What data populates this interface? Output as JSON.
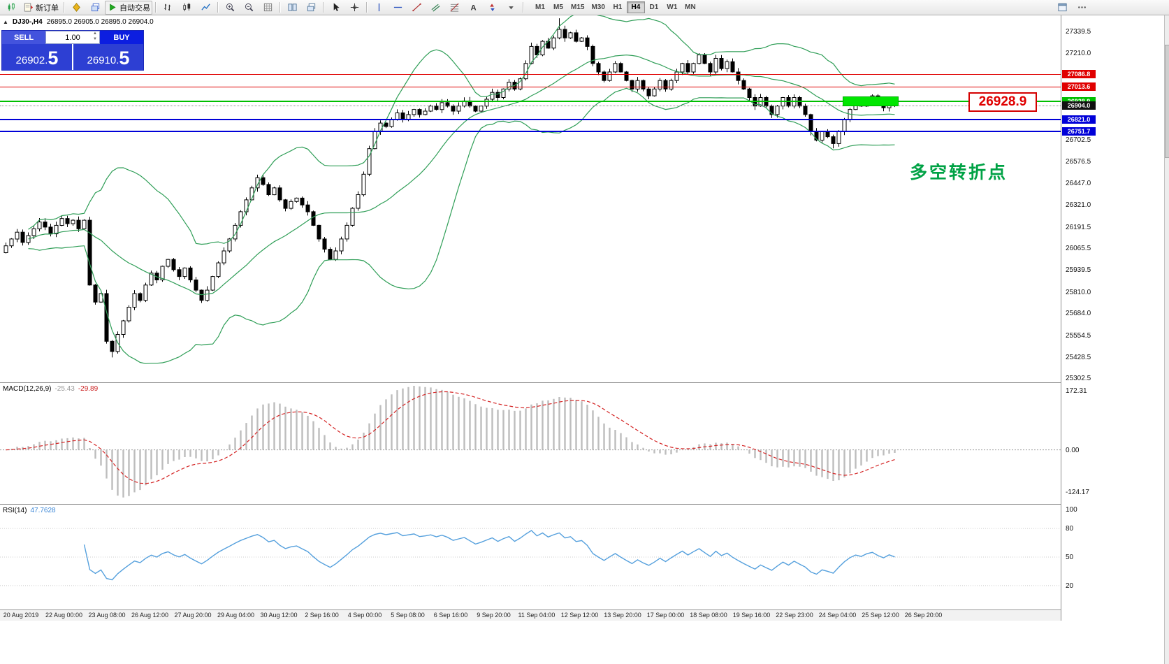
{
  "toolbar": {
    "items": [
      {
        "icon": "chart-new",
        "name": "new-chart"
      },
      {
        "icon": "order",
        "name": "new-order",
        "label": "新订单"
      },
      {
        "sep": true
      },
      {
        "icon": "diamond",
        "name": "symbols"
      },
      {
        "icon": "layers",
        "name": "chart-windows"
      },
      {
        "icon": "play",
        "name": "autotrade",
        "label": "自动交易",
        "boxed": true
      },
      {
        "sep": true
      },
      {
        "icon": "bars",
        "name": "bar-chart"
      },
      {
        "icon": "candles",
        "name": "candle-chart"
      },
      {
        "icon": "line",
        "name": "line-chart"
      },
      {
        "sep": true
      },
      {
        "icon": "zoom-in",
        "name": "zoom-in"
      },
      {
        "icon": "zoom-out",
        "name": "zoom-out"
      },
      {
        "icon": "grid",
        "name": "grid"
      },
      {
        "sep": true
      },
      {
        "icon": "tile",
        "name": "tile-windows"
      },
      {
        "icon": "cascade",
        "name": "cascade-windows"
      },
      {
        "sep": true
      },
      {
        "icon": "cursor",
        "name": "cursor"
      },
      {
        "icon": "crosshair",
        "name": "crosshair"
      },
      {
        "sep": true
      },
      {
        "icon": "vline",
        "name": "vertical-line"
      },
      {
        "icon": "hline",
        "name": "horizontal-line"
      },
      {
        "icon": "trendline",
        "name": "trendline"
      },
      {
        "icon": "channel",
        "name": "equidistant-channel"
      },
      {
        "icon": "fibo",
        "name": "fibonacci"
      },
      {
        "icon": "text",
        "name": "text-label"
      },
      {
        "icon": "arrows",
        "name": "arrow-objects"
      },
      {
        "icon": "caret",
        "name": "objects-list"
      },
      {
        "sep": true
      }
    ],
    "right_items": [
      {
        "icon": "window",
        "name": "new-window"
      },
      {
        "icon": "more",
        "name": "toolbar-more"
      }
    ],
    "timeframes": [
      "M1",
      "M5",
      "M15",
      "M30",
      "H1",
      "H4",
      "D1",
      "W1",
      "MN"
    ],
    "active_timeframe": "H4"
  },
  "chart_header": {
    "collapse_icon": "▲",
    "symbol_title": "DJ30-,H4",
    "ohlc_text": "26895.0 26905.0 26895.0 26904.0"
  },
  "one_click": {
    "sell_label": "SELL",
    "buy_label": "BUY",
    "volume": "1.00",
    "sell_price": "26902.",
    "sell_big": "5",
    "buy_price": "26910.",
    "buy_big": "5"
  },
  "annotations": {
    "price_flag": "26928.9",
    "turning_point": "多空转折点"
  },
  "macd_panel": {
    "title": "MACD(12,26,9)",
    "value": "-25.43",
    "signal": "-29.89"
  },
  "rsi_panel": {
    "title": "RSI(14)",
    "value": "47.7628"
  },
  "price_axis": {
    "ticks": [
      {
        "text": "27339.5",
        "value": 27339.5
      },
      {
        "text": "27210.0",
        "value": 27210.0
      },
      {
        "text": "26702.5",
        "value": 26702.5
      },
      {
        "text": "26576.5",
        "value": 26576.5
      },
      {
        "text": "26447.0",
        "value": 26447.0
      },
      {
        "text": "26321.0",
        "value": 26321.0
      },
      {
        "text": "26191.5",
        "value": 26191.5
      },
      {
        "text": "26065.5",
        "value": 26065.5
      },
      {
        "text": "25939.5",
        "value": 25939.5
      },
      {
        "text": "25810.0",
        "value": 25810.0
      },
      {
        "text": "25684.0",
        "value": 25684.0
      },
      {
        "text": "25554.5",
        "value": 25554.5
      },
      {
        "text": "25428.5",
        "value": 25428.5
      },
      {
        "text": "25302.5",
        "value": 25302.5
      }
    ]
  },
  "chart_data": {
    "type": "candlestick",
    "symbol": "DJ30-",
    "timeframe": "H4",
    "last_ohlc": {
      "open": 26895.0,
      "high": 26905.0,
      "low": 26895.0,
      "close": 26904.0
    },
    "bid": 26902.5,
    "ask": 26910.5,
    "price_range": {
      "min": 25275,
      "max": 27432
    },
    "closes": [
      26080,
      26120,
      26160,
      26100,
      26140,
      26180,
      26220,
      26190,
      26150,
      26200,
      26240,
      26210,
      26230,
      26180,
      26230,
      25850,
      25750,
      25800,
      25520,
      25460,
      25560,
      25640,
      25720,
      25800,
      25760,
      25850,
      25920,
      25880,
      25960,
      26000,
      25940,
      25900,
      25950,
      25880,
      25820,
      25760,
      25820,
      25900,
      25980,
      26050,
      26120,
      26200,
      26280,
      26350,
      26420,
      26480,
      26440,
      26380,
      26420,
      26350,
      26300,
      26340,
      26360,
      26320,
      26280,
      26200,
      26120,
      26060,
      26000,
      26050,
      26120,
      26200,
      26300,
      26380,
      26500,
      26650,
      26750,
      26800,
      26780,
      26820,
      26860,
      26820,
      26850,
      26880,
      26850,
      26870,
      26900,
      26880,
      26920,
      26900,
      26870,
      26900,
      26930,
      26900,
      26870,
      26900,
      26940,
      26980,
      26950,
      27000,
      27040,
      27000,
      27060,
      27150,
      27250,
      27200,
      27280,
      27240,
      27300,
      27350,
      27300,
      27330,
      27280,
      27300,
      27250,
      27150,
      27100,
      27050,
      27100,
      27150,
      27100,
      27050,
      27000,
      27050,
      27000,
      26960,
      27000,
      27050,
      27000,
      27050,
      27100,
      27150,
      27100,
      27150,
      27200,
      27150,
      27100,
      27180,
      27120,
      27160,
      27100,
      27050,
      27000,
      26950,
      26900,
      26950,
      26900,
      26850,
      26900,
      26950,
      26900,
      26950,
      26900,
      26850,
      26750,
      26700,
      26750,
      26720,
      26680,
      26750,
      26820,
      26880,
      26920,
      26900,
      26940,
      26960,
      26920,
      26890,
      26930,
      26904
    ],
    "bollinger": {
      "period": 20,
      "deviation": 2,
      "color": "#2f9e57"
    },
    "levels": [
      {
        "price": 27086.8,
        "label": "27086.8",
        "color": "#e00000",
        "width": 1
      },
      {
        "price": 27013.6,
        "label": "27013.6",
        "color": "#e00000",
        "width": 1
      },
      {
        "price": 26928.9,
        "label": "26928.9",
        "color": "#00bf00",
        "width": 2
      },
      {
        "price": 26821.0,
        "label": "26821.0",
        "color": "#0000d8",
        "width": 2
      },
      {
        "price": 26751.7,
        "label": "26751.7",
        "color": "#0000d8",
        "width": 2
      }
    ],
    "current_price": {
      "price": 26904.0,
      "label": "26904.0",
      "color": "#111111"
    },
    "highlight_rect": {
      "from_candle": 150,
      "to_candle": 160,
      "price_top": 26958,
      "price_bottom": 26899,
      "fill": "#00e600",
      "border": "#00aa00"
    },
    "macd": {
      "fast": 12,
      "slow": 26,
      "signal": 9,
      "display_value": "-25.43",
      "display_signal": "-29.89",
      "range": [
        -160,
        195
      ],
      "axis_ticks": [
        {
          "text": "172.31",
          "value": 172.31
        },
        {
          "text": "0.00",
          "value": 0
        },
        {
          "text": "-124.17",
          "value": -124.17
        }
      ]
    },
    "rsi": {
      "period": 14,
      "display_value": "47.7628",
      "range": [
        -5,
        105
      ],
      "levels": [
        80,
        50,
        20
      ],
      "axis_ticks": [
        {
          "text": "100",
          "value": 100
        },
        {
          "text": "80",
          "value": 80
        },
        {
          "text": "50",
          "value": 50
        },
        {
          "text": "20",
          "value": 20
        }
      ]
    },
    "x_labels": [
      "20 Aug 2019",
      "22 Aug 00:00",
      "23 Aug 08:00",
      "26 Aug 12:00",
      "27 Aug 20:00",
      "29 Aug 04:00",
      "30 Aug 12:00",
      "2 Sep 16:00",
      "4 Sep 00:00",
      "5 Sep 08:00",
      "6 Sep 16:00",
      "9 Sep 20:00",
      "11 Sep 04:00",
      "12 Sep 12:00",
      "13 Sep 20:00",
      "17 Sep 00:00",
      "18 Sep 08:00",
      "19 Sep 16:00",
      "22 Sep 23:00",
      "24 Sep 04:00",
      "25 Sep 12:00",
      "26 Sep 20:00"
    ]
  }
}
